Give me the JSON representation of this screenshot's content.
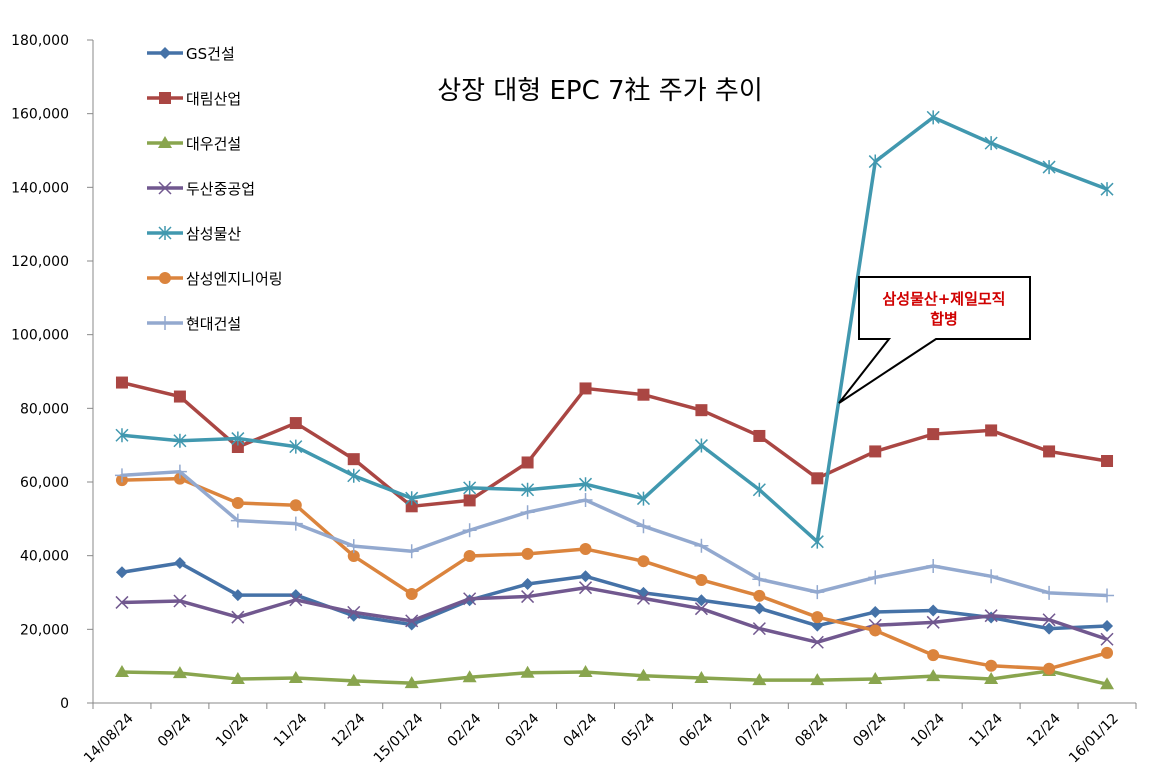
{
  "chart_data": {
    "type": "line",
    "title": "상장 대형 EPC 7社 주가 추이",
    "xlabel": "",
    "ylabel": "",
    "ylim": [
      0,
      180000
    ],
    "yticks": [
      0,
      20000,
      40000,
      60000,
      80000,
      100000,
      120000,
      140000,
      160000,
      180000
    ],
    "ytick_labels": [
      "0",
      "20,000",
      "40,000",
      "60,000",
      "80,000",
      "100,000",
      "120,000",
      "140,000",
      "160,000",
      "180,000"
    ],
    "grid": false,
    "legend_position": "top-left",
    "categories": [
      "14/08/24",
      "09/24",
      "10/24",
      "11/24",
      "12/24",
      "15/01/24",
      "02/24",
      "03/24",
      "04/24",
      "05/24",
      "06/24",
      "07/24",
      "08/24",
      "09/24",
      "10/24",
      "11/24",
      "12/24",
      "16/01/12"
    ],
    "series": [
      {
        "name": "GS건설",
        "color": "#4572a7",
        "marker": "diamond",
        "values": [
          35500,
          38000,
          29300,
          29300,
          23700,
          21300,
          27900,
          32300,
          34400,
          29900,
          27900,
          25700,
          21000,
          24700,
          25100,
          23200,
          20200,
          20900
        ]
      },
      {
        "name": "대림산업",
        "color": "#aa4643",
        "marker": "square",
        "values": [
          87000,
          83200,
          69500,
          76000,
          66200,
          53400,
          55000,
          65300,
          85400,
          83700,
          79500,
          72500,
          61000,
          68300,
          73000,
          74000,
          68300,
          65700
        ]
      },
      {
        "name": "대우건설",
        "color": "#89a54e",
        "marker": "triangle",
        "values": [
          8400,
          8100,
          6500,
          6800,
          6000,
          5400,
          7000,
          8200,
          8400,
          7400,
          6800,
          6200,
          6200,
          6500,
          7300,
          6500,
          8700,
          5100
        ]
      },
      {
        "name": "두산중공업",
        "color": "#71588f",
        "marker": "x",
        "values": [
          27300,
          27700,
          23300,
          28000,
          24600,
          22300,
          28300,
          28900,
          31300,
          28400,
          25600,
          20200,
          16500,
          21100,
          21900,
          23700,
          22600,
          17300
        ]
      },
      {
        "name": "삼성물산",
        "color": "#4198af",
        "marker": "star",
        "values": [
          72700,
          71200,
          71800,
          69600,
          61700,
          55600,
          58400,
          57900,
          59400,
          55500,
          69900,
          57900,
          43800,
          147000,
          159000,
          152000,
          145500,
          139500
        ]
      },
      {
        "name": "삼성엔지니어링",
        "color": "#db843d",
        "marker": "circle",
        "values": [
          60500,
          60900,
          54300,
          53700,
          39900,
          29600,
          39900,
          40500,
          41800,
          38500,
          33400,
          29100,
          23300,
          19700,
          13000,
          10100,
          9300,
          13600
        ]
      },
      {
        "name": "현대건설",
        "color": "#93a9cf",
        "marker": "plus",
        "values": [
          61800,
          62800,
          49500,
          48700,
          42600,
          41200,
          46900,
          51800,
          55100,
          48000,
          42700,
          33600,
          30100,
          34100,
          37200,
          34400,
          29900,
          29200
        ]
      }
    ],
    "annotation": {
      "lines": [
        "삼성물산+제일모직",
        "합병"
      ],
      "color": "#d00000"
    }
  }
}
